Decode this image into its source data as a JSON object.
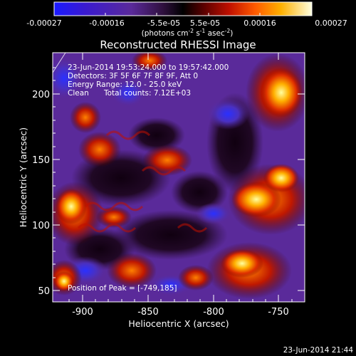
{
  "colorbar": {
    "ticks": [
      "-0.00027",
      "-0.00016",
      "-5.5e-05",
      "5.5e-05",
      "0.00016",
      "0.00027"
    ],
    "unit_label": "(photons cm",
    "unit_sup1": "-2",
    "unit_mid": " s",
    "unit_sup2": "-1",
    "unit_end": " asec",
    "unit_sup3": "-2",
    "unit_close": ")",
    "colors": [
      "#1a1aff",
      "#3a12c8",
      "#5a1a9a",
      "#3a0a3a",
      "#000000",
      "#5a0000",
      "#c01000",
      "#ff5a00",
      "#ffb000",
      "#ffffa0",
      "#ffffff"
    ]
  },
  "title": "Reconstructed RHESSI Image",
  "annotations": {
    "line1": "23-Jun-2014 19:53:24.000 to 19:57:42.000",
    "line2": "Detectors: 3F 5F 6F 7F 8F 9F, Att 0",
    "line3": "Energy Range: 12.0 - 25.0 keV",
    "line4a": "Clean",
    "line4b": "Total counts: 7.12E+03",
    "peak": "Position of Peak = [-749,185]"
  },
  "axes": {
    "xlabel": "Heliocentric X (arcsec)",
    "ylabel": "Heliocentric Y (arcsec)",
    "x_ticks": [
      "-900",
      "-850",
      "-800",
      "-750"
    ],
    "y_ticks": [
      "200",
      "150",
      "100",
      "50"
    ]
  },
  "timestamp": "23-Jun-2014 21:44"
}
